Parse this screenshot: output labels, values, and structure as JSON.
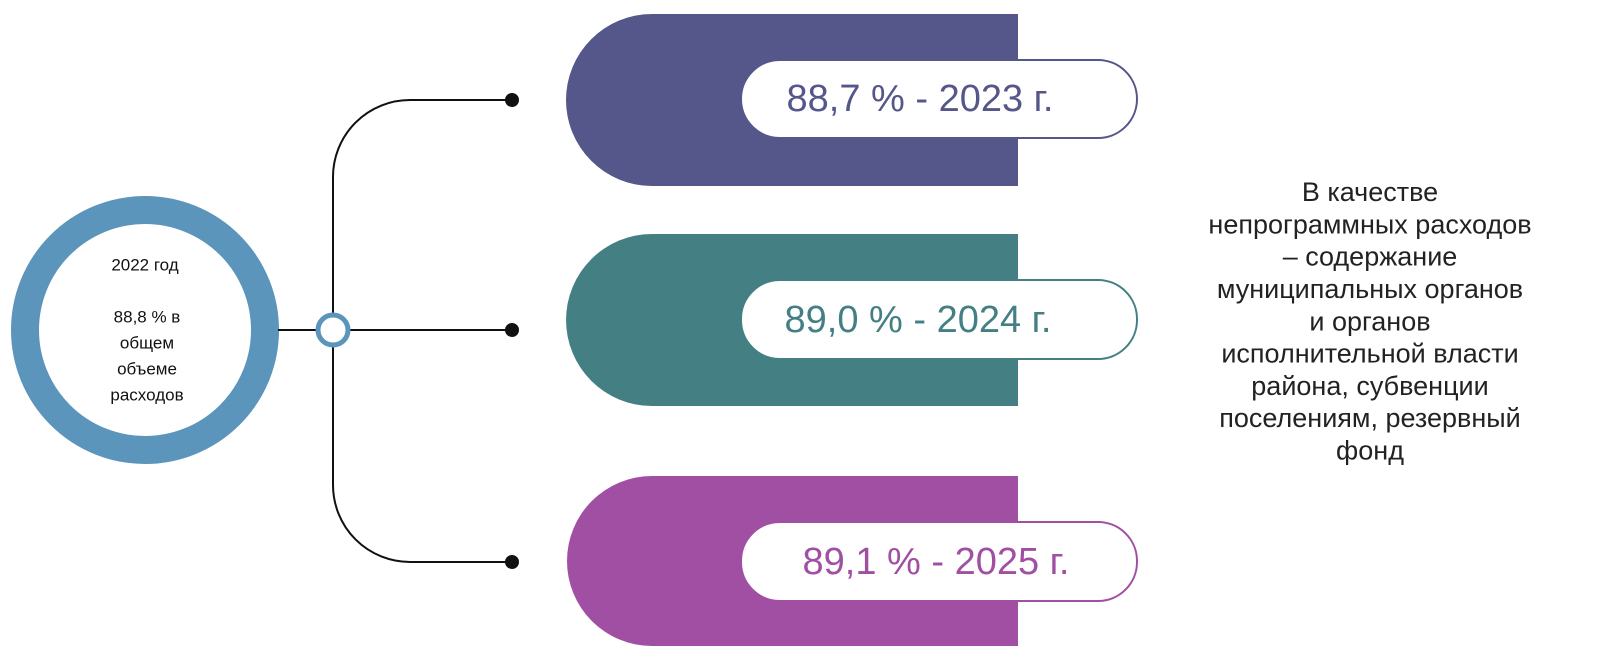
{
  "center": {
    "title": "2022 год",
    "lines": [
      "88,8 % в",
      "общем",
      "объеме",
      "расходов"
    ]
  },
  "items": [
    {
      "label": "88,7 % - 2023 г."
    },
    {
      "label": "89,0 % - 2024 г."
    },
    {
      "label": "89,1 % - 2025 г."
    }
  ],
  "note": {
    "lines": [
      "В качестве",
      "непрограммных расходов",
      "– содержание",
      "муниципальных органов",
      "и органов",
      "исполнительной власти",
      "района, субвенции",
      "поселениям, резервный",
      "фонд"
    ]
  }
}
